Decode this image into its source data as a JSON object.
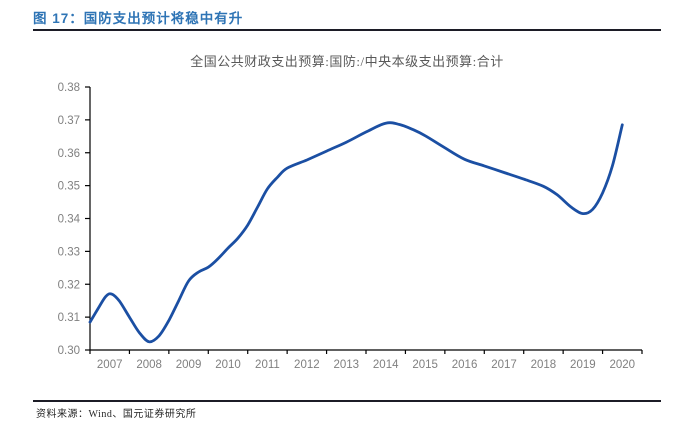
{
  "header": {
    "title": "图 17：国防支出预计将稳中有升"
  },
  "footer": {
    "source": "资料来源：Wind、国元证券研究所"
  },
  "colors": {
    "line": "#1b4fa3",
    "header_text": "#2e74b5",
    "axis": "#000000",
    "tick_label": "#808080",
    "chart_title": "#595959",
    "rule": "#1c1c26"
  },
  "chart_data": {
    "type": "line",
    "title": "全国公共财政支出预算:国防:/中央本级支出预算:合计",
    "xlabel": "",
    "ylabel": "",
    "xlim": [
      2006.5,
      2020.5
    ],
    "ylim": [
      0.3,
      0.38
    ],
    "grid": false,
    "legend_position": "none",
    "y_tick_labels": [
      "0.30",
      "0.31",
      "0.32",
      "0.33",
      "0.34",
      "0.35",
      "0.36",
      "0.37",
      "0.38"
    ],
    "x_tick_labels": [
      "2007",
      "2008",
      "2009",
      "2010",
      "2011",
      "2012",
      "2013",
      "2014",
      "2015",
      "2016",
      "2017",
      "2018",
      "2019",
      "2020"
    ],
    "series": [
      {
        "name": "全国公共财政支出预算:国防:/中央本级支出预算:合计",
        "points": [
          [
            2006.5,
            0.3085
          ],
          [
            2006.7,
            0.3125
          ],
          [
            2006.9,
            0.3163
          ],
          [
            2007.05,
            0.317
          ],
          [
            2007.25,
            0.3148
          ],
          [
            2007.5,
            0.31
          ],
          [
            2007.75,
            0.3053
          ],
          [
            2008.0,
            0.3025
          ],
          [
            2008.25,
            0.3043
          ],
          [
            2008.5,
            0.309
          ],
          [
            2008.75,
            0.315
          ],
          [
            2009.0,
            0.321
          ],
          [
            2009.25,
            0.3237
          ],
          [
            2009.5,
            0.3252
          ],
          [
            2009.75,
            0.3278
          ],
          [
            2010.0,
            0.331
          ],
          [
            2010.25,
            0.334
          ],
          [
            2010.5,
            0.338
          ],
          [
            2010.75,
            0.3435
          ],
          [
            2011.0,
            0.349
          ],
          [
            2011.25,
            0.3525
          ],
          [
            2011.5,
            0.3553
          ],
          [
            2012.0,
            0.3578
          ],
          [
            2012.5,
            0.3605
          ],
          [
            2013.0,
            0.3632
          ],
          [
            2013.5,
            0.3663
          ],
          [
            2014.0,
            0.369
          ],
          [
            2014.35,
            0.3686
          ],
          [
            2014.7,
            0.367
          ],
          [
            2015.0,
            0.3652
          ],
          [
            2015.5,
            0.3615
          ],
          [
            2016.0,
            0.358
          ],
          [
            2016.5,
            0.356
          ],
          [
            2017.0,
            0.354
          ],
          [
            2017.5,
            0.352
          ],
          [
            2018.0,
            0.3498
          ],
          [
            2018.35,
            0.3472
          ],
          [
            2018.7,
            0.3435
          ],
          [
            2019.0,
            0.3415
          ],
          [
            2019.25,
            0.3428
          ],
          [
            2019.5,
            0.3478
          ],
          [
            2019.75,
            0.356
          ],
          [
            2020.0,
            0.3685
          ]
        ]
      }
    ]
  }
}
